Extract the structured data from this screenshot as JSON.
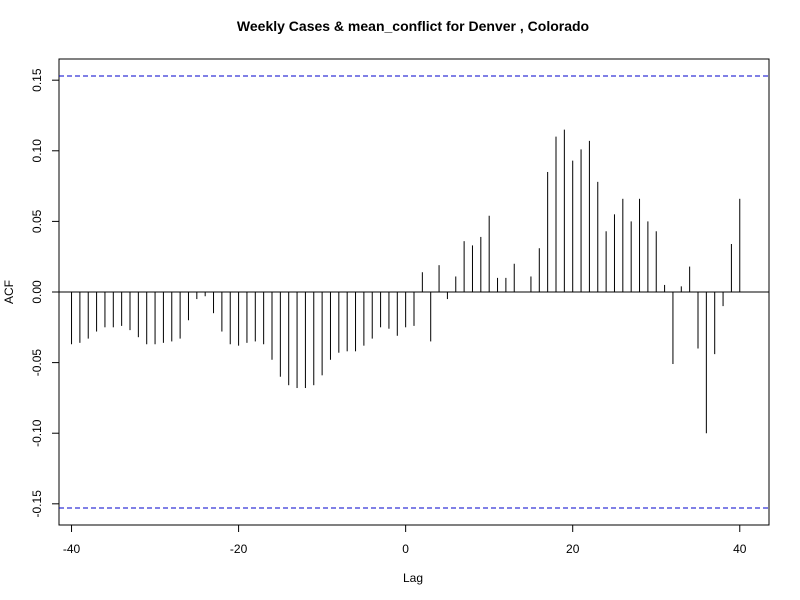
{
  "chart_data": {
    "type": "bar",
    "title": "Weekly Cases & mean_conflict for Denver , Colorado",
    "xlabel": "Lag",
    "ylabel": "ACF",
    "xlim": [
      -41.5,
      43.5
    ],
    "ylim": [
      -0.165,
      0.165
    ],
    "x_ticks": [
      -40,
      -20,
      0,
      20,
      40
    ],
    "x_tick_labels": [
      "-40",
      "-20",
      "0",
      "20",
      "40"
    ],
    "y_ticks": [
      -0.15,
      -0.1,
      -0.05,
      0.0,
      0.05,
      0.1,
      0.15
    ],
    "y_tick_labels": [
      "-0.15",
      "-0.10",
      "-0.05",
      "0.00",
      "0.05",
      "0.10",
      "0.15"
    ],
    "confidence_limits": [
      0.153,
      -0.153
    ],
    "confidence_color": "#0000cc",
    "lags": [
      -40,
      -39,
      -38,
      -37,
      -36,
      -35,
      -34,
      -33,
      -32,
      -31,
      -30,
      -29,
      -28,
      -27,
      -26,
      -25,
      -24,
      -23,
      -22,
      -21,
      -20,
      -19,
      -18,
      -17,
      -16,
      -15,
      -14,
      -13,
      -12,
      -11,
      -10,
      -9,
      -8,
      -7,
      -6,
      -5,
      -4,
      -3,
      -2,
      -1,
      0,
      1,
      2,
      3,
      4,
      5,
      6,
      7,
      8,
      9,
      10,
      11,
      12,
      13,
      14,
      15,
      16,
      17,
      18,
      19,
      20,
      21,
      22,
      23,
      24,
      25,
      26,
      27,
      28,
      29,
      30,
      31,
      32,
      33,
      34,
      35,
      36,
      37,
      38,
      39,
      40
    ],
    "acf": [
      -0.037,
      -0.036,
      -0.033,
      -0.028,
      -0.025,
      -0.025,
      -0.024,
      -0.027,
      -0.032,
      -0.037,
      -0.037,
      -0.036,
      -0.035,
      -0.033,
      -0.02,
      -0.005,
      -0.003,
      -0.015,
      -0.028,
      -0.037,
      -0.038,
      -0.036,
      -0.035,
      -0.037,
      -0.048,
      -0.06,
      -0.066,
      -0.068,
      -0.068,
      -0.066,
      -0.059,
      -0.048,
      -0.043,
      -0.042,
      -0.042,
      -0.038,
      -0.033,
      -0.025,
      -0.026,
      -0.031,
      -0.025,
      -0.024,
      0.014,
      -0.035,
      0.019,
      -0.005,
      0.011,
      0.036,
      0.033,
      0.039,
      0.054,
      0.01,
      0.01,
      0.02,
      0.0,
      0.011,
      0.031,
      0.085,
      0.11,
      0.115,
      0.093,
      0.101,
      0.107,
      0.078,
      0.043,
      0.055,
      0.066,
      0.05,
      0.066,
      0.05,
      0.043,
      0.005,
      -0.051,
      0.004,
      0.018,
      -0.04,
      -0.1,
      -0.044,
      -0.01,
      0.034,
      0.066
    ]
  }
}
